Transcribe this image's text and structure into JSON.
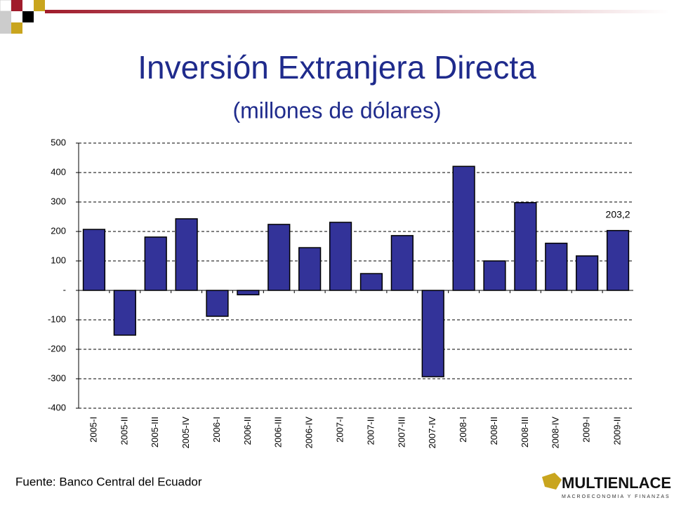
{
  "chart_data": {
    "type": "bar",
    "title": "Inversión Extranjera Directa",
    "subtitle": "(millones de dólares)",
    "categories": [
      "2005-I",
      "2005-II",
      "2005-III",
      "2005-IV",
      "2006-I",
      "2006-II",
      "2006-III",
      "2006-IV",
      "2007-I",
      "2007-II",
      "2007-III",
      "2007-IV",
      "2008-I",
      "2008-II",
      "2008-III",
      "2008-IV",
      "2009-I",
      "2009-II"
    ],
    "values": [
      207,
      -152,
      181,
      243,
      -88,
      -15,
      224,
      145,
      231,
      57,
      186,
      -293,
      421,
      100,
      298,
      160,
      117,
      203.2
    ],
    "value_labels": [
      null,
      null,
      null,
      null,
      null,
      null,
      null,
      null,
      null,
      null,
      null,
      null,
      null,
      null,
      null,
      null,
      null,
      "203,2"
    ],
    "color": "#333399",
    "ylim": [
      -400,
      500
    ],
    "yticks": [
      -400,
      -300,
      -200,
      -100,
      {
        "value": 0,
        "label": "-"
      },
      100,
      200,
      300,
      400,
      500
    ],
    "grid": true
  },
  "footer": {
    "source": "Fuente: Banco Central del Ecuador"
  },
  "logo": {
    "name": "MULTIENLACE",
    "tagline": "MACROECONOMIA Y FINANZAS"
  }
}
